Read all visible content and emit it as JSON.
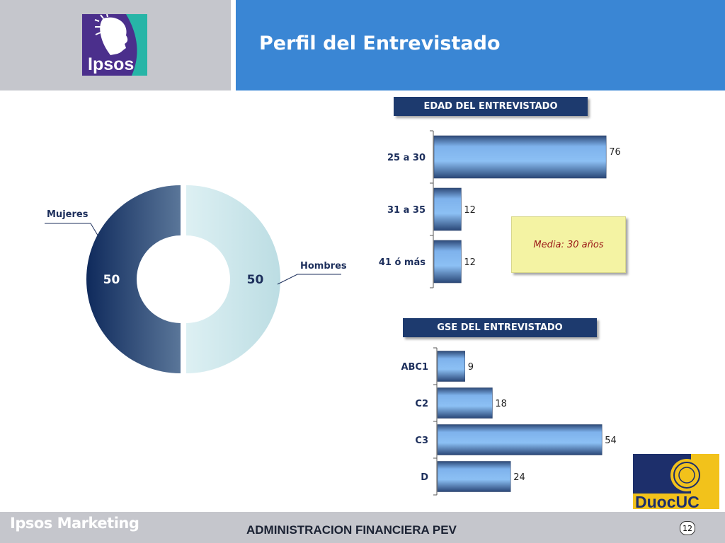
{
  "header": {
    "title": "Perfil del Entrevistado",
    "logo_text": "Ipsos"
  },
  "footer": {
    "brand": "Ipsos Marketing",
    "center_text": "ADMINISTRACION FINANCIERA PEV",
    "page_number": "12",
    "partner_logo_text": "DuocUC"
  },
  "colors": {
    "title_bar": "#3a86d4",
    "logo_panel": "#c5c6cc",
    "header_box": "#1d3a6e",
    "donut_dark": "#1f3f72",
    "donut_light": "#cfe8ec",
    "bar": "#6aa6e6",
    "note_bg": "#f4f3a3",
    "note_text": "#9a1616"
  },
  "chart_data": [
    {
      "type": "pie",
      "style": "donut",
      "categories": [
        "Mujeres",
        "Hombres"
      ],
      "values": [
        50,
        50
      ],
      "labels": [
        "50",
        "50"
      ]
    },
    {
      "type": "bar",
      "orientation": "horizontal",
      "title": "EDAD DEL ENTREVISTADO",
      "categories": [
        "25 a 30",
        "31 a 35",
        "41 ó más"
      ],
      "values": [
        76,
        12,
        12
      ],
      "annotation": "Media: 30 años"
    },
    {
      "type": "bar",
      "orientation": "horizontal",
      "title": "GSE DEL ENTREVISTADO",
      "categories": [
        "ABC1",
        "C2",
        "C3",
        "D"
      ],
      "values": [
        9,
        18,
        54,
        24
      ]
    }
  ]
}
